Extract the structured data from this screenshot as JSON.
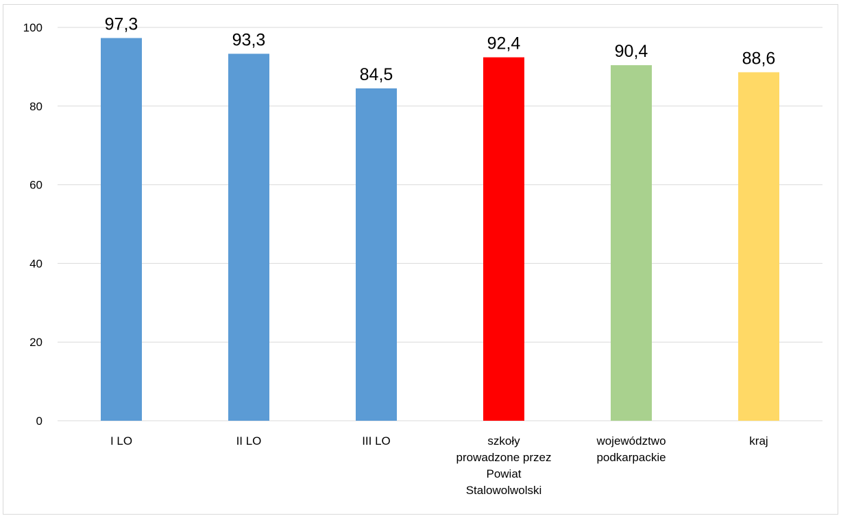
{
  "chart_data": {
    "type": "bar",
    "title": "",
    "xlabel": "",
    "ylabel": "",
    "ylim": [
      0,
      100
    ],
    "yticks": [
      0,
      20,
      40,
      60,
      80,
      100
    ],
    "grid": true,
    "legend": "none",
    "categories": [
      [
        "I LO"
      ],
      [
        "II LO"
      ],
      [
        "III LO"
      ],
      [
        "szkoły",
        "prowadzone przez",
        "Powiat",
        "Stalowolwolski"
      ],
      [
        "województwo",
        "podkarpackie"
      ],
      [
        "kraj"
      ]
    ],
    "values": [
      97.3,
      93.3,
      84.5,
      92.4,
      90.4,
      88.6
    ],
    "value_labels": [
      "97,3",
      "93,3",
      "84,5",
      "92,4",
      "90,4",
      "88,6"
    ],
    "colors": [
      "#5b9bd5",
      "#5b9bd5",
      "#5b9bd5",
      "#ff0000",
      "#a9d18e",
      "#ffd966"
    ]
  }
}
